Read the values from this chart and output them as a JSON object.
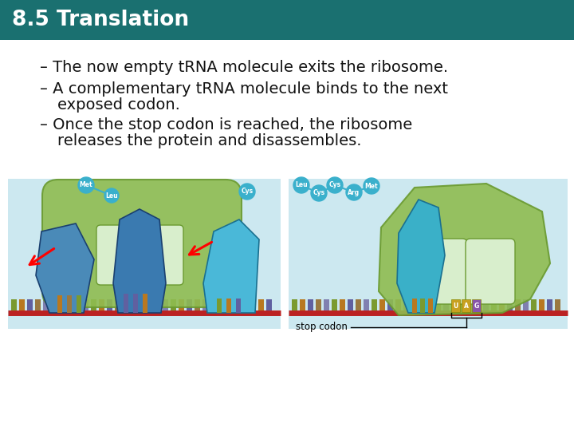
{
  "title": "8.5 Translation",
  "title_bg_color": "#1a7070",
  "title_text_color": "#ffffff",
  "slide_bg_color": "#ffffff",
  "bullet_points": [
    "– The now empty tRNA molecule exits the ribosome.",
    "– A complementary tRNA molecule binds to the next",
    "   exposed codon.",
    "– Once the stop codon is reached, the ribosome",
    "   releases the protein and disassembles."
  ],
  "bullet_font_size": 14,
  "bullet_text_color": "#111111",
  "diagram_bg_color": "#cce8f0",
  "mRNA_color": "#bb2222",
  "ribosome_green": "#8fbc50",
  "ribosome_green_dark": "#6a9a30",
  "ribosome_pocket_color": "#d8eecc",
  "tRNA_blue_dark": "#3a7ab0",
  "tRNA_blue_mid": "#4a9ab8",
  "tRNA_blue_light": "#5ab8d8",
  "protein_node_color": "#3ab0cc",
  "annotation_text": "stop codon",
  "codon_palette": [
    "#7a9a30",
    "#b87820",
    "#6060a0",
    "#9a7840",
    "#8080b0"
  ],
  "stop_codon_colors": [
    "#c8a020",
    "#c8a020",
    "#8855aa"
  ]
}
